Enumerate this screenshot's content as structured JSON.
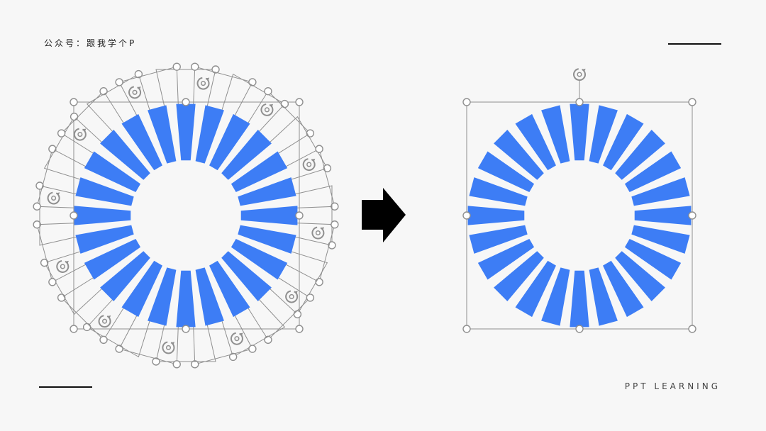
{
  "header": {
    "label": "公众号：跟我学个P"
  },
  "footer": {
    "label": "PPT LEARNING"
  },
  "diagram": {
    "segment_count": 24,
    "before": {
      "description": "ring of separately selected segments, each with its own handles and rotate icon"
    },
    "after": {
      "description": "same ring combined into a single shape with one bounding box"
    }
  },
  "colors": {
    "segment_fill": "#3d7df5",
    "handle_stroke": "#8f8f8f",
    "accent_dark": "#111111"
  },
  "icons": {
    "arrow": "right-arrow-icon",
    "rotate": "rotate-handle-icon"
  }
}
